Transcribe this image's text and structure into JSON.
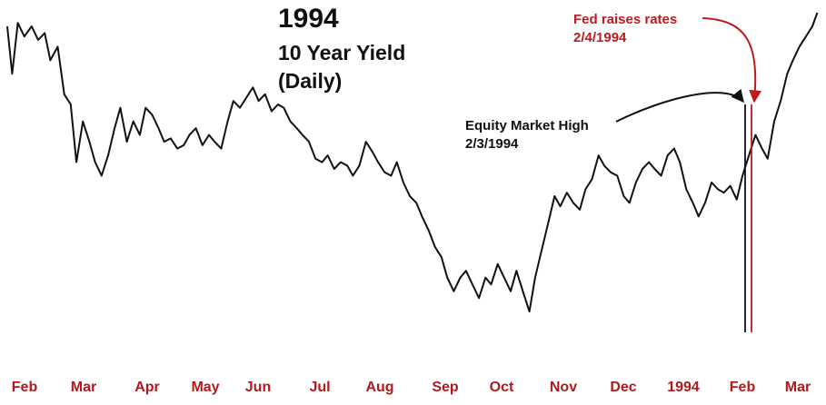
{
  "chart_data": {
    "type": "line",
    "title": "1994",
    "subtitle_lines": [
      "10 Year Yield",
      "(Daily)"
    ],
    "xlabel": "",
    "ylabel": "",
    "grid": false,
    "legend": "none",
    "colors": {
      "line": "#111111",
      "annotation_red": "#c0191c",
      "annotation_black": "#111111",
      "tick_labels": "#b01a1c"
    },
    "tick_labels": [
      "Feb",
      "Mar",
      "Apr",
      "May",
      "Jun",
      "Jul",
      "Aug",
      "Sep",
      "Oct",
      "Nov",
      "Dec",
      "1994",
      "Feb",
      "Mar"
    ],
    "x_range": [
      0,
      100
    ],
    "y_range_relative": [
      0,
      100
    ],
    "series": [
      {
        "values": [
          [
            0.0,
            96
          ],
          [
            0.6,
            82
          ],
          [
            1.3,
            97
          ],
          [
            2.1,
            93
          ],
          [
            3.0,
            96
          ],
          [
            3.8,
            92
          ],
          [
            4.6,
            94
          ],
          [
            5.3,
            86
          ],
          [
            6.2,
            90
          ],
          [
            7.0,
            76
          ],
          [
            7.8,
            73
          ],
          [
            8.5,
            56
          ],
          [
            9.3,
            68
          ],
          [
            10.1,
            62
          ],
          [
            10.8,
            56
          ],
          [
            11.6,
            52
          ],
          [
            12.4,
            58
          ],
          [
            13.2,
            66
          ],
          [
            13.9,
            72
          ],
          [
            14.7,
            62
          ],
          [
            15.5,
            68
          ],
          [
            16.3,
            64
          ],
          [
            17.0,
            72
          ],
          [
            17.8,
            70
          ],
          [
            18.6,
            66
          ],
          [
            19.3,
            62
          ],
          [
            20.1,
            63
          ],
          [
            20.9,
            60
          ],
          [
            21.7,
            61
          ],
          [
            22.4,
            64
          ],
          [
            23.2,
            66
          ],
          [
            24.0,
            61
          ],
          [
            24.8,
            64
          ],
          [
            25.5,
            62
          ],
          [
            26.3,
            60
          ],
          [
            27.1,
            68
          ],
          [
            27.8,
            74
          ],
          [
            28.6,
            72
          ],
          [
            29.4,
            75
          ],
          [
            30.2,
            78
          ],
          [
            30.9,
            74
          ],
          [
            31.7,
            76
          ],
          [
            32.5,
            71
          ],
          [
            33.3,
            73
          ],
          [
            34.0,
            72
          ],
          [
            34.8,
            68
          ],
          [
            35.6,
            66
          ],
          [
            36.3,
            64
          ],
          [
            37.1,
            62
          ],
          [
            37.9,
            57
          ],
          [
            38.7,
            56
          ],
          [
            39.4,
            58
          ],
          [
            40.2,
            54
          ],
          [
            41.0,
            56
          ],
          [
            41.8,
            55
          ],
          [
            42.5,
            52
          ],
          [
            43.3,
            55
          ],
          [
            44.1,
            62
          ],
          [
            44.9,
            59
          ],
          [
            45.6,
            56
          ],
          [
            46.4,
            53
          ],
          [
            47.2,
            52
          ],
          [
            47.9,
            56
          ],
          [
            48.7,
            50
          ],
          [
            49.5,
            46
          ],
          [
            50.3,
            44
          ],
          [
            51.0,
            40
          ],
          [
            51.8,
            36
          ],
          [
            52.6,
            31
          ],
          [
            53.4,
            28
          ],
          [
            54.1,
            22
          ],
          [
            54.9,
            18
          ],
          [
            55.7,
            22
          ],
          [
            56.4,
            24
          ],
          [
            57.2,
            20
          ],
          [
            58.0,
            16
          ],
          [
            58.8,
            22
          ],
          [
            59.5,
            20
          ],
          [
            60.3,
            26
          ],
          [
            61.1,
            22
          ],
          [
            61.9,
            18
          ],
          [
            62.6,
            24
          ],
          [
            63.4,
            18
          ],
          [
            64.2,
            12
          ],
          [
            64.9,
            22
          ],
          [
            65.7,
            30
          ],
          [
            66.5,
            38
          ],
          [
            67.3,
            46
          ],
          [
            68.0,
            43
          ],
          [
            68.8,
            47
          ],
          [
            69.6,
            44
          ],
          [
            70.4,
            42
          ],
          [
            71.1,
            48
          ],
          [
            71.9,
            51
          ],
          [
            72.7,
            58
          ],
          [
            73.4,
            55
          ],
          [
            74.2,
            53
          ],
          [
            75.0,
            52
          ],
          [
            75.8,
            46
          ],
          [
            76.5,
            44
          ],
          [
            77.3,
            50
          ],
          [
            78.1,
            54
          ],
          [
            78.9,
            56
          ],
          [
            79.6,
            54
          ],
          [
            80.4,
            52
          ],
          [
            81.2,
            58
          ],
          [
            82.0,
            60
          ],
          [
            82.7,
            56
          ],
          [
            83.5,
            48
          ],
          [
            84.3,
            44
          ],
          [
            85.0,
            40
          ],
          [
            85.8,
            44
          ],
          [
            86.6,
            50
          ],
          [
            87.4,
            48
          ],
          [
            88.1,
            47
          ],
          [
            88.9,
            49
          ],
          [
            89.7,
            45
          ],
          [
            90.4,
            52
          ],
          [
            91.2,
            58
          ],
          [
            92.0,
            64
          ],
          [
            92.8,
            60
          ],
          [
            93.5,
            57
          ],
          [
            94.3,
            68
          ],
          [
            95.1,
            74
          ],
          [
            95.9,
            82
          ],
          [
            96.6,
            86
          ],
          [
            97.4,
            90
          ],
          [
            98.2,
            93
          ],
          [
            99.0,
            96
          ],
          [
            99.6,
            100
          ]
        ]
      }
    ],
    "annotations": [
      {
        "label_lines": [
          "Fed raises rates",
          "2/4/1994"
        ],
        "color": "#c0191c",
        "x": 91.6
      },
      {
        "label_lines": [
          "Equity Market High",
          "2/3/1994"
        ],
        "color": "#111111",
        "x": 90.8
      }
    ]
  }
}
